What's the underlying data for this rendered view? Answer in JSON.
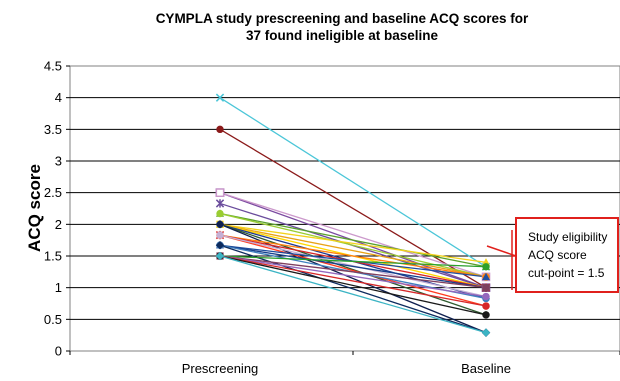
{
  "chart_data": {
    "type": "line",
    "title_lines": [
      "CYMPLA study prescreening and baseline ACQ scores for",
      "37 found ineligible at baseline"
    ],
    "ylabel": "ACQ score",
    "xlabel": "",
    "categories": [
      "Prescreening",
      "Baseline"
    ],
    "ylim": [
      0,
      4.5
    ],
    "yticks": [
      "0",
      "0.5",
      "1",
      "1.5",
      "2",
      "2.5",
      "3",
      "3.5",
      "4",
      "4.5"
    ],
    "grid": "horizontal",
    "annotation": {
      "lines": [
        "Study eligibility",
        "ACQ score",
        "cut-point = 1.5"
      ],
      "border_color": "#e0201c"
    },
    "series": [
      {
        "values": [
          4.0,
          1.33
        ],
        "color": "#4bc6d8",
        "marker": "x"
      },
      {
        "values": [
          3.5,
          1.0
        ],
        "color": "#8b1a1a",
        "marker": "circle"
      },
      {
        "values": [
          2.5,
          1.0
        ],
        "color": "#7b4aa0",
        "marker": "square-open"
      },
      {
        "values": [
          2.5,
          1.17
        ],
        "color": "#cc99cc",
        "marker": "square-open"
      },
      {
        "values": [
          2.33,
          1.0
        ],
        "color": "#6a4c9c",
        "marker": "star"
      },
      {
        "values": [
          2.17,
          1.33
        ],
        "color": "#5aa02c",
        "marker": "triangle"
      },
      {
        "values": [
          2.17,
          1.17
        ],
        "color": "#9acd32",
        "marker": "circle"
      },
      {
        "values": [
          2.0,
          1.4
        ],
        "color": "#f2d21b",
        "marker": "triangle"
      },
      {
        "values": [
          2.0,
          1.17
        ],
        "color": "#e8a317",
        "marker": "circle"
      },
      {
        "values": [
          2.0,
          1.0
        ],
        "color": "#ffd700",
        "marker": "square"
      },
      {
        "values": [
          2.0,
          0.83
        ],
        "color": "#1f3a93",
        "marker": "circle"
      },
      {
        "values": [
          2.0,
          0.57
        ],
        "color": "#2e5a2e",
        "marker": "plus"
      },
      {
        "values": [
          2.0,
          0.29
        ],
        "color": "#0f1f4f",
        "marker": "diamond"
      },
      {
        "values": [
          1.83,
          1.17
        ],
        "color": "#ff7f0e",
        "marker": "circle"
      },
      {
        "values": [
          1.83,
          1.0
        ],
        "color": "#d62728",
        "marker": "star"
      },
      {
        "values": [
          1.83,
          0.71
        ],
        "color": "#ff3b1f",
        "marker": "circle"
      },
      {
        "values": [
          1.83,
          0.86
        ],
        "color": "#c5b0d5",
        "marker": "circle"
      },
      {
        "values": [
          1.67,
          1.17
        ],
        "color": "#1f4e9f",
        "marker": "triangle"
      },
      {
        "values": [
          1.67,
          1.0
        ],
        "color": "#17408b",
        "marker": "circle"
      },
      {
        "values": [
          1.67,
          0.83
        ],
        "color": "#3f7fbf",
        "marker": "circle"
      },
      {
        "values": [
          1.67,
          0.29
        ],
        "color": "#0d2b5e",
        "marker": "diamond"
      },
      {
        "values": [
          1.5,
          1.33
        ],
        "color": "#2ca02c",
        "marker": "circle"
      },
      {
        "values": [
          1.5,
          1.0
        ],
        "color": "#7f3f5f",
        "marker": "square"
      },
      {
        "values": [
          1.5,
          0.86
        ],
        "color": "#9467bd",
        "marker": "circle"
      },
      {
        "values": [
          1.5,
          0.71
        ],
        "color": "#d62728",
        "marker": "circle"
      },
      {
        "values": [
          1.5,
          0.57
        ],
        "color": "#1a1a1a",
        "marker": "circle"
      },
      {
        "values": [
          1.5,
          0.29
        ],
        "color": "#3cb4c4",
        "marker": "diamond"
      }
    ]
  }
}
